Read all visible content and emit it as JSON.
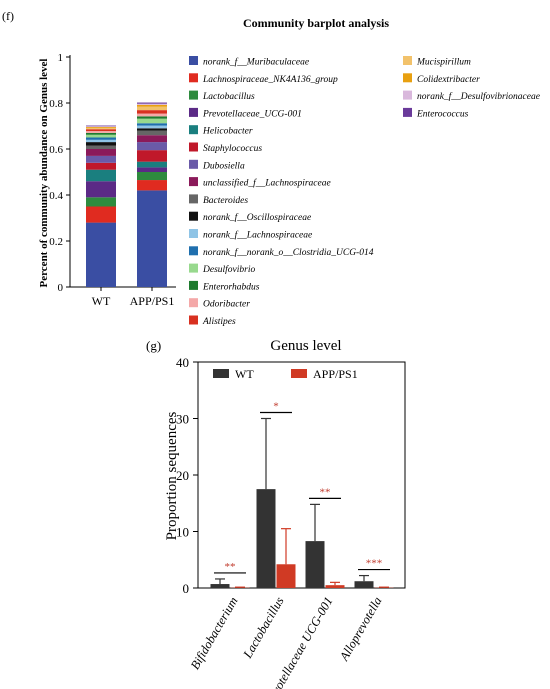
{
  "panel_f_label": "(f)",
  "panel_g_label": "(g)",
  "colors": {
    "axis": "#000000",
    "wt": "#333333",
    "app": "#d03a24",
    "sig": "#c0392b"
  },
  "chart_data": [
    {
      "type": "bar",
      "stacked": true,
      "title": "Community barplot analysis",
      "ylabel": "Percent of community abundance on Genus level",
      "xlabel": "",
      "categories": [
        "WT",
        "APP/PS1"
      ],
      "ylim": [
        0,
        1
      ],
      "yticks": [
        "0",
        "0.2",
        "0.4",
        "0.6",
        "0.8",
        "1"
      ],
      "legend_placement": "right",
      "series": [
        {
          "name": "norank_f__Muribaculaceae",
          "color": "#3a4ea3",
          "values": [
            0.28,
            0.42
          ]
        },
        {
          "name": "Lachnospiraceae_NK4A136_group",
          "color": "#e02b20",
          "values": [
            0.07,
            0.045
          ]
        },
        {
          "name": "Lactobacillus",
          "color": "#2e8b3e",
          "values": [
            0.04,
            0.035
          ]
        },
        {
          "name": "Prevotellaceae_UCG-001",
          "color": "#5b2a86",
          "values": [
            0.07,
            0.02
          ]
        },
        {
          "name": "Helicobacter",
          "color": "#1a7f7f",
          "values": [
            0.05,
            0.025
          ]
        },
        {
          "name": "Staphylococcus",
          "color": "#c0182a",
          "values": [
            0.03,
            0.05
          ]
        },
        {
          "name": "Dubosiella",
          "color": "#6a5aa8",
          "values": [
            0.03,
            0.035
          ]
        },
        {
          "name": "unclassified_f__Lachnospiraceae",
          "color": "#8b1a5a",
          "values": [
            0.03,
            0.03
          ]
        },
        {
          "name": "Bacteroides",
          "color": "#666666",
          "values": [
            0.015,
            0.02
          ]
        },
        {
          "name": "norank_f__Oscillospiraceae",
          "color": "#111111",
          "values": [
            0.015,
            0.01
          ]
        },
        {
          "name": "norank_f__Lachnospiraceae",
          "color": "#8fc4e6",
          "values": [
            0.01,
            0.012
          ]
        },
        {
          "name": "norank_f__norank_o__Clostridia_UCG-014",
          "color": "#1f6fae",
          "values": [
            0.01,
            0.01
          ]
        },
        {
          "name": "Desulfovibrio",
          "color": "#98d98e",
          "values": [
            0.012,
            0.02
          ]
        },
        {
          "name": "Enterorhabdus",
          "color": "#1e7b2e",
          "values": [
            0.008,
            0.01
          ]
        },
        {
          "name": "Odoribacter",
          "color": "#f4a8a8",
          "values": [
            0.008,
            0.012
          ]
        },
        {
          "name": "Alistipes",
          "color": "#d83020",
          "values": [
            0.008,
            0.015
          ]
        },
        {
          "name": "Mucispirillum",
          "color": "#f2c26b",
          "values": [
            0.006,
            0.015
          ]
        },
        {
          "name": "Colidextribacter",
          "color": "#e8a010",
          "values": [
            0.004,
            0.008
          ]
        },
        {
          "name": "norank_f__Desulfovibrionaceae",
          "color": "#d9b8dc",
          "values": [
            0.003,
            0.005
          ]
        },
        {
          "name": "Enterococcus",
          "color": "#6a3a9a",
          "values": [
            0.003,
            0.005
          ]
        }
      ]
    },
    {
      "type": "bar",
      "title": "Genus level",
      "ylabel": "Proportion sequences",
      "xlabel": "",
      "categories": [
        "Bifidobacterium",
        "Lactobacillus",
        "Prevotellaceae UCG-001",
        "Alloprevotella"
      ],
      "ylim": [
        0,
        40
      ],
      "yticks": [
        "0",
        "10",
        "20",
        "30",
        "40"
      ],
      "legend_placement": "top",
      "series": [
        {
          "name": "WT",
          "color": "#333333",
          "values": [
            0.7,
            17.5,
            8.3,
            1.2
          ],
          "errors": [
            0.9,
            12.5,
            6.5,
            1.0
          ]
        },
        {
          "name": "APP/PS1",
          "color": "#d03a24",
          "values": [
            0.05,
            4.2,
            0.5,
            0.05
          ],
          "errors": [
            0.1,
            6.3,
            0.5,
            0.1
          ]
        }
      ],
      "significance": [
        "**",
        "*",
        "**",
        "***"
      ]
    }
  ]
}
